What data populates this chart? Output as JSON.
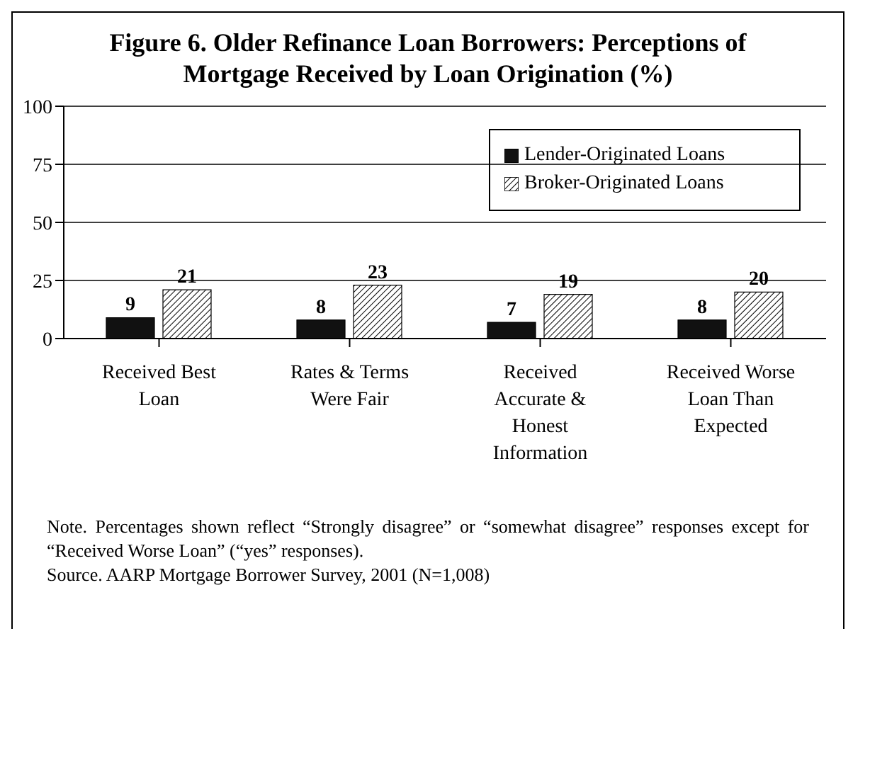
{
  "chart_data": {
    "type": "bar",
    "title": "Figure 6.  Older Refinance Loan Borrowers: Perceptions of Mortgage Received by Loan Origination (%)",
    "categories": [
      "Received Best Loan",
      "Rates & Terms Were Fair",
      "Received Accurate & Honest Information",
      "Received Worse Loan Than Expected"
    ],
    "series": [
      {
        "name": "Lender-Originated Loans",
        "color": "#111111",
        "values": [
          9,
          8,
          7,
          8
        ]
      },
      {
        "name": "Broker-Originated Loans",
        "color": "#000000",
        "values": [
          21,
          23,
          19,
          20
        ]
      }
    ],
    "ylim": [
      0,
      100
    ],
    "yticks": [
      0,
      25,
      50,
      75,
      100
    ],
    "grid": "y",
    "legend": "top right",
    "data_labels": true,
    "annotations": [
      "Note. Percentages shown reflect “Strongly disagree” or “somewhat disagree” responses except for “Received Worse Loan” (“yes” responses).",
      "Source. AARP Mortgage Borrower Survey, 2001 (N=1,008)"
    ]
  }
}
